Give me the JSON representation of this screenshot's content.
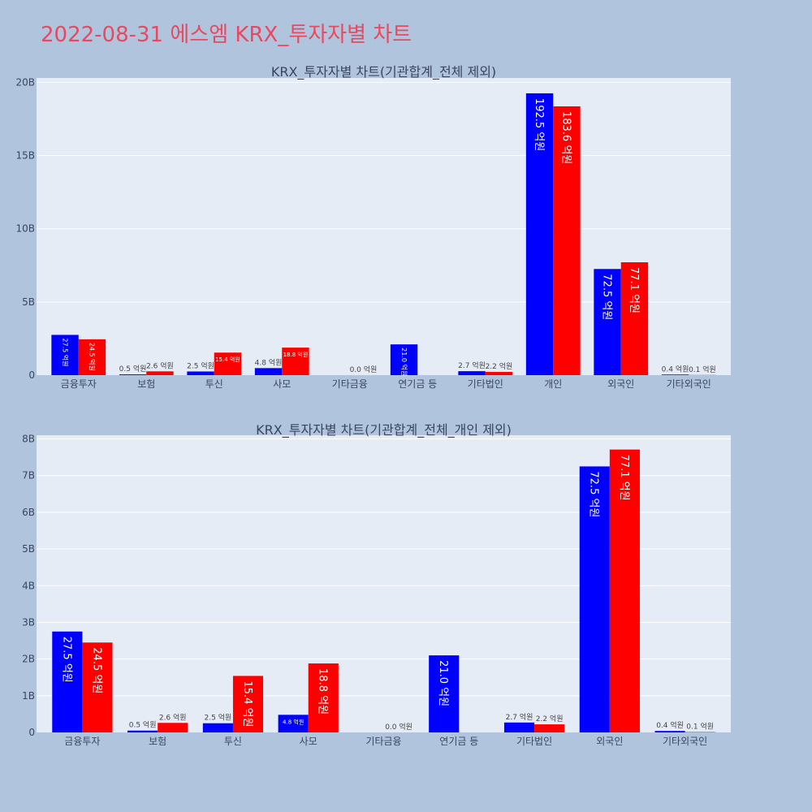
{
  "page": {
    "title": "2022-08-31 에스엠 KRX_투자자별 차트"
  },
  "colors": {
    "background": "#b0c4de",
    "plot_background": "#e5ecf6",
    "grid": "#ffffff",
    "title": "#e8495f",
    "series_blue": "#0000ff",
    "series_red": "#ff0000"
  },
  "chart_data": [
    {
      "type": "bar",
      "title": "KRX_투자자별 차트(기관합계_전체 제외)",
      "xlabel": "",
      "ylabel": "",
      "categories": [
        "금융투자",
        "보험",
        "투신",
        "사모",
        "기타금융",
        "연기금 등",
        "기타법인",
        "개인",
        "외국인",
        "기타외국인"
      ],
      "yticks": [
        0,
        5,
        10,
        15,
        20
      ],
      "ytick_labels": [
        "0",
        "5B",
        "10B",
        "15B",
        "20B"
      ],
      "ylim": [
        0,
        20.3
      ],
      "unit_note": "y values in billions (B)",
      "grid": true,
      "legend": "none",
      "series": [
        {
          "color": "#0000ff",
          "values": [
            2.75,
            0.05,
            0.25,
            0.48,
            0.0,
            2.1,
            0.27,
            19.25,
            7.25,
            0.04
          ],
          "labels": [
            "27.5 억원",
            "0.5 억원",
            "2.5 억원",
            "4.8 억원",
            "",
            "21.0 억원",
            "2.7 억원",
            "192.5 억원",
            "72.5 억원",
            "0.4 억원"
          ]
        },
        {
          "color": "#ff0000",
          "values": [
            2.45,
            0.26,
            1.54,
            1.88,
            0.0,
            0.0,
            0.22,
            18.36,
            7.71,
            0.01
          ],
          "labels": [
            "24.5 억원",
            "2.6 억원",
            "15.4 억원",
            "18.8 억원",
            "0.0 억원",
            "",
            "2.2 억원",
            "183.6 억원",
            "77.1 억원",
            "0.1 억원"
          ]
        }
      ]
    },
    {
      "type": "bar",
      "title": "KRX_투자자별 차트(기관합계_전체_개인 제외)",
      "xlabel": "",
      "ylabel": "",
      "categories": [
        "금융투자",
        "보험",
        "투신",
        "사모",
        "기타금융",
        "연기금 등",
        "기타법인",
        "외국인",
        "기타외국인"
      ],
      "yticks": [
        0,
        1,
        2,
        3,
        4,
        5,
        6,
        7,
        8
      ],
      "ytick_labels": [
        "0",
        "1B",
        "2B",
        "3B",
        "4B",
        "5B",
        "6B",
        "7B",
        "8B"
      ],
      "ylim": [
        0,
        8.1
      ],
      "unit_note": "y values in billions (B)",
      "grid": true,
      "legend": "none",
      "series": [
        {
          "color": "#0000ff",
          "values": [
            2.75,
            0.05,
            0.25,
            0.48,
            0.0,
            2.1,
            0.27,
            7.25,
            0.04
          ],
          "labels": [
            "27.5 억원",
            "0.5 억원",
            "2.5 억원",
            "4.8 억원",
            "",
            "21.0 억원",
            "2.7 억원",
            "72.5 억원",
            "0.4 억원"
          ]
        },
        {
          "color": "#ff0000",
          "values": [
            2.45,
            0.26,
            1.54,
            1.88,
            0.0,
            0.0,
            0.22,
            7.71,
            0.01
          ],
          "labels": [
            "24.5 억원",
            "2.6 억원",
            "15.4 억원",
            "18.8 억원",
            "0.0 억원",
            "",
            "2.2 억원",
            "77.1 억원",
            "0.1 억원"
          ]
        }
      ]
    }
  ]
}
